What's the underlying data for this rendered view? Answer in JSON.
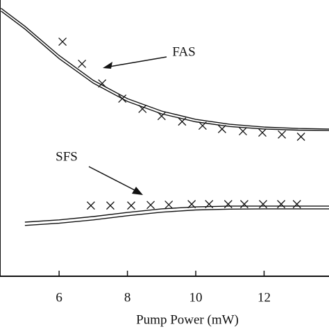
{
  "chart_data": {
    "type": "line",
    "xlabel": "Pump Power (mW)",
    "xlim": [
      4.27,
      13.9
    ],
    "xticks": [
      6,
      8,
      10,
      12
    ],
    "ylim": [
      0,
      100
    ],
    "annotations": [
      {
        "text": "FAS"
      },
      {
        "text": "SFS"
      }
    ],
    "series": [
      {
        "style": "line",
        "color": "#111111",
        "x": [
          4.3,
          5,
          6,
          7,
          8,
          9,
          10,
          11,
          12,
          13,
          13.9
        ],
        "values": [
          97.0,
          90.5,
          79.9,
          70.9,
          64.3,
          59.8,
          56.8,
          55.0,
          54.0,
          53.5,
          53.3
        ]
      },
      {
        "style": "line",
        "color": "#111111",
        "x": [
          4.3,
          5,
          6,
          7,
          8,
          9,
          10,
          11,
          12,
          13,
          13.9
        ],
        "values": [
          96.0,
          89.5,
          78.8,
          69.9,
          63.3,
          58.8,
          55.9,
          54.2,
          53.3,
          52.9,
          52.8
        ]
      },
      {
        "style": "line",
        "color": "#111111",
        "x": [
          5,
          6,
          7,
          8,
          9,
          10,
          11,
          12,
          13,
          13.9
        ],
        "values": [
          19.6,
          20.4,
          21.6,
          23.1,
          24.4,
          25.1,
          25.4,
          25.4,
          25.4,
          25.4
        ]
      },
      {
        "style": "line",
        "color": "#111111",
        "x": [
          5,
          6,
          7,
          8,
          9,
          10,
          11,
          12,
          13,
          13.9
        ],
        "values": [
          18.4,
          19.2,
          20.4,
          21.9,
          23.2,
          24.0,
          24.3,
          24.4,
          24.4,
          24.4
        ]
      },
      {
        "style": "cross",
        "color": "#111111",
        "x": [
          6.1,
          6.67,
          7.26,
          7.85,
          8.44,
          9.0,
          9.6,
          10.2,
          10.77,
          11.38,
          11.95,
          12.52,
          13.08
        ],
        "values": [
          84.9,
          76.9,
          69.8,
          64.3,
          60.6,
          58.0,
          56.0,
          54.5,
          53.3,
          52.5,
          52.0,
          51.3,
          50.5
        ]
      },
      {
        "style": "cross",
        "color": "#111111",
        "x": [
          6.93,
          7.5,
          8.11,
          8.68,
          9.21,
          9.88,
          10.39,
          10.95,
          11.42,
          11.97,
          12.5,
          12.96
        ],
        "values": [
          25.6,
          25.6,
          25.6,
          25.8,
          25.9,
          26.1,
          26.1,
          26.1,
          26.1,
          26.1,
          26.1,
          26.1
        ]
      }
    ]
  }
}
